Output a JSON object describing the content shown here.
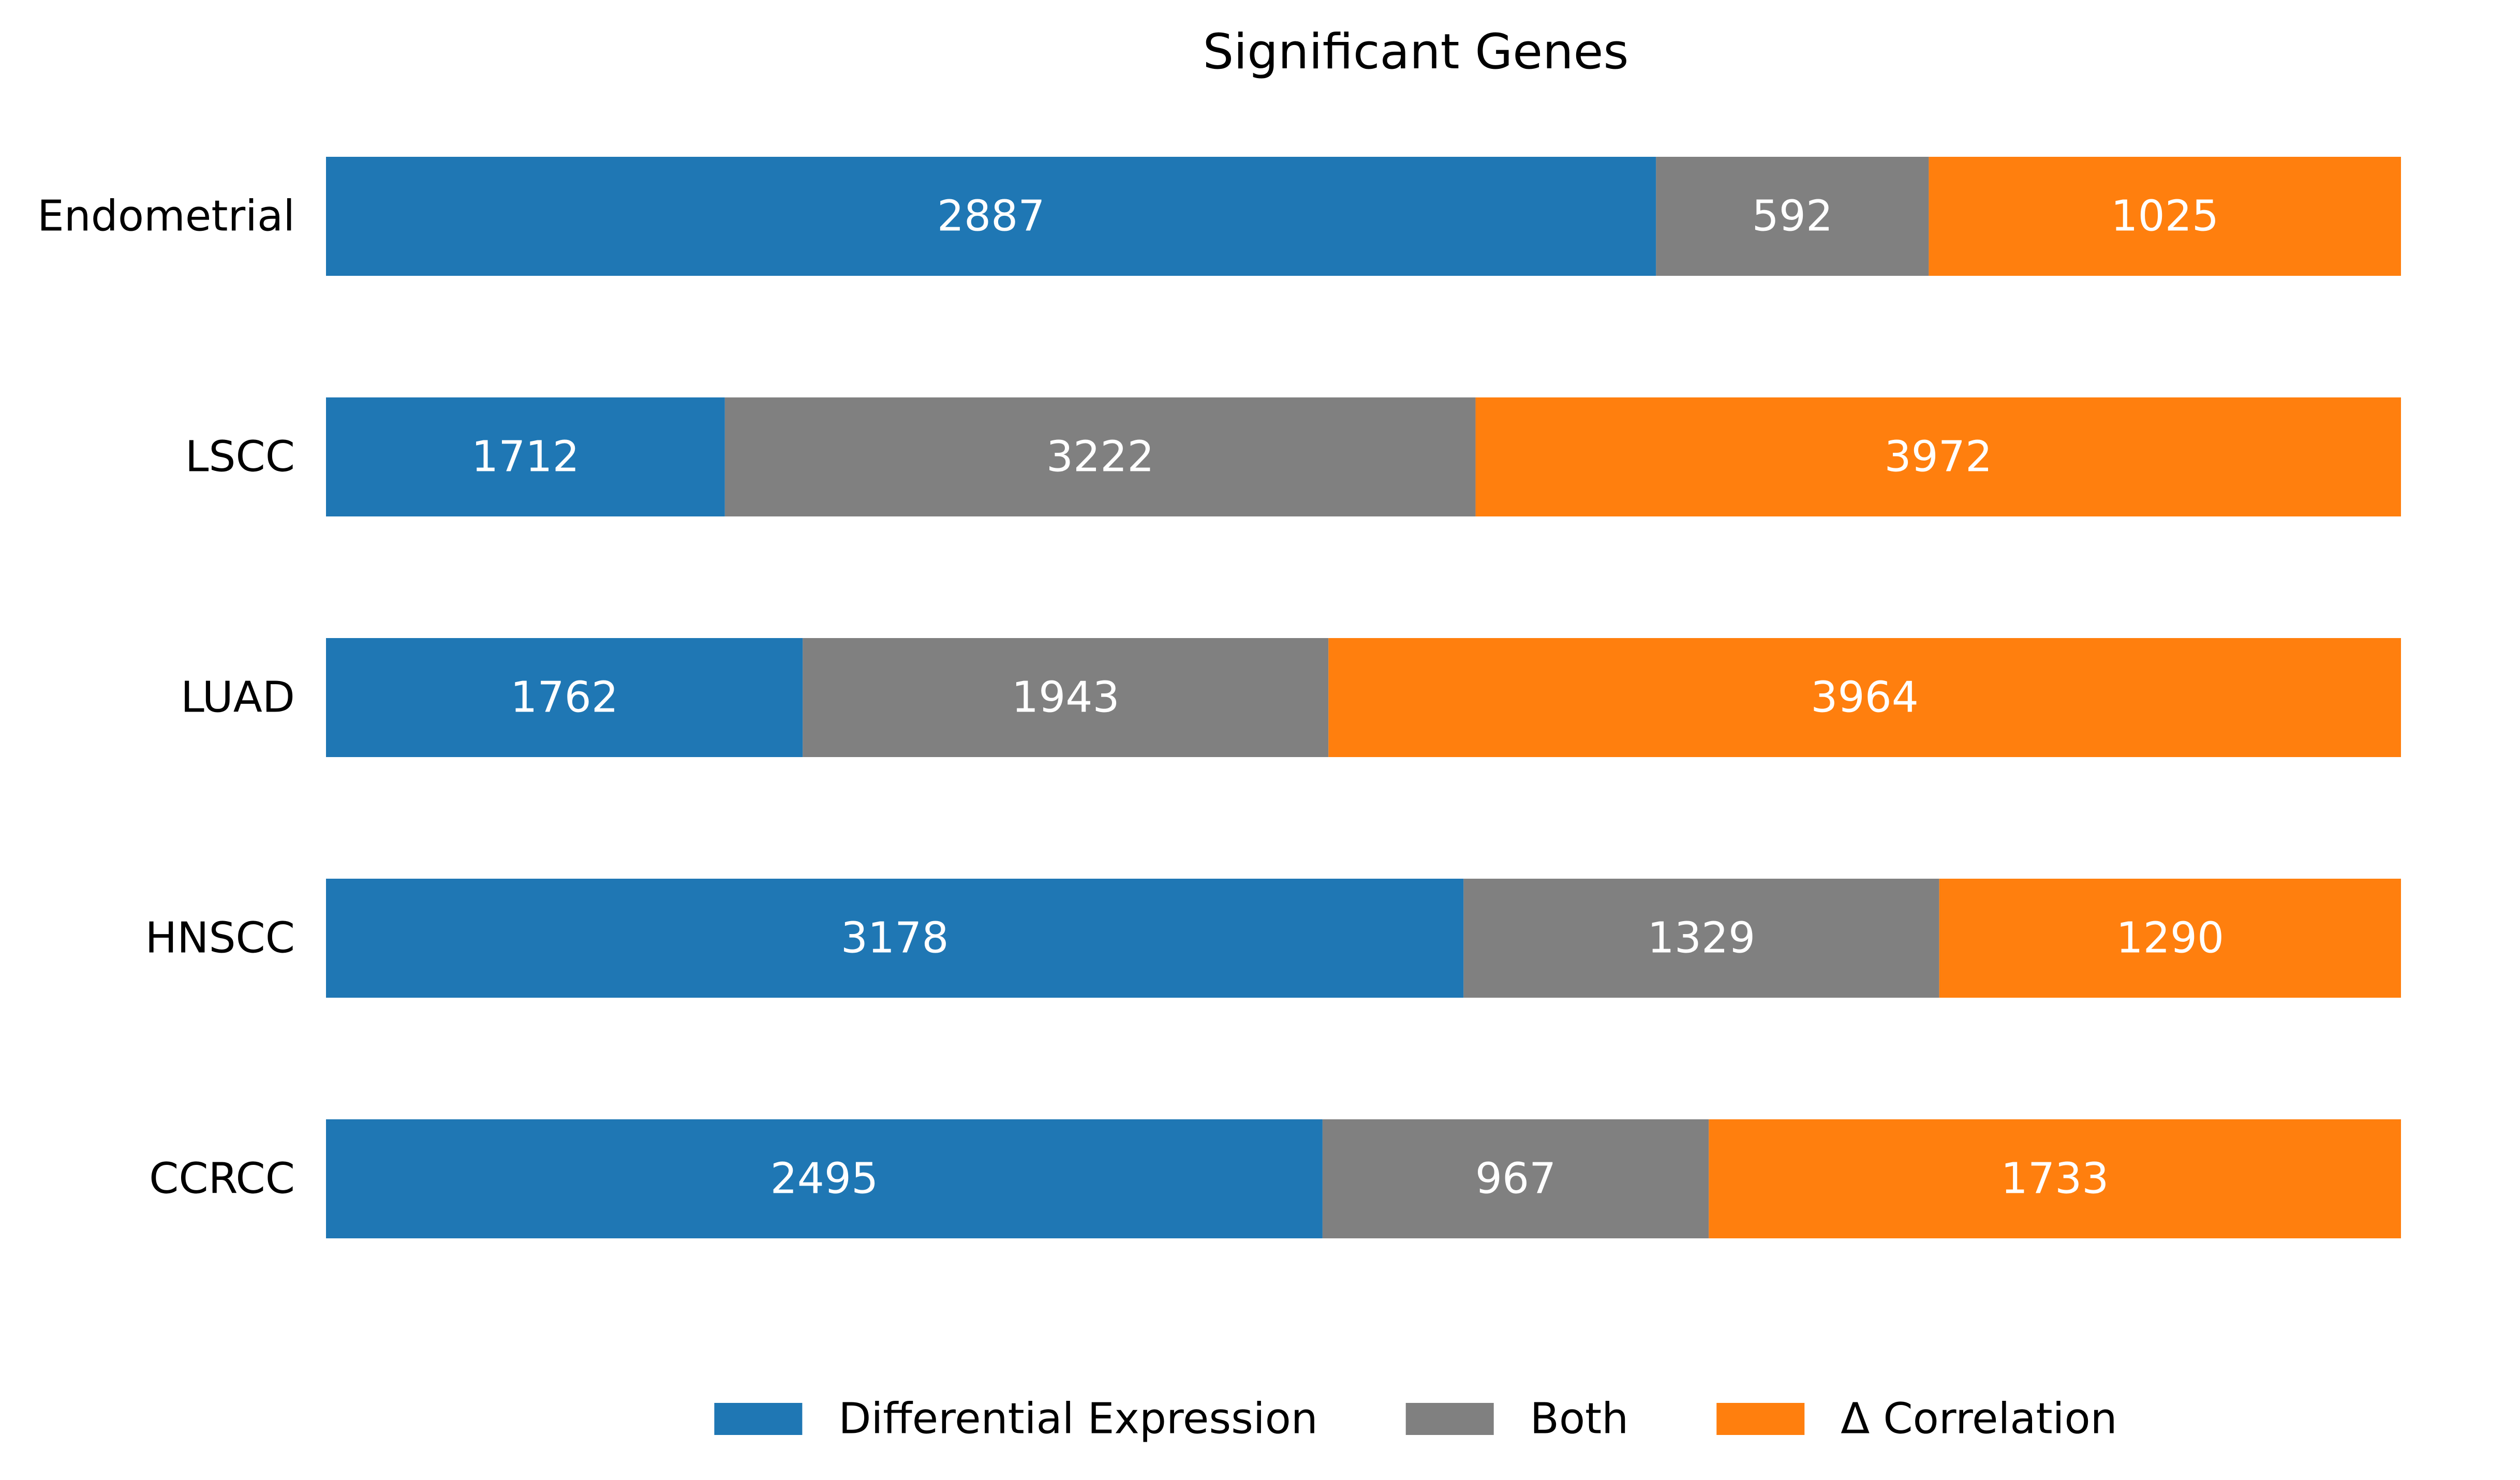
{
  "chart_data": {
    "type": "bar",
    "orientation": "horizontal",
    "stacked": true,
    "normalized": true,
    "title": "Significant Genes",
    "xlabel": "",
    "ylabel": "",
    "categories": [
      "Endometrial",
      "LSCC",
      "LUAD",
      "HNSCC",
      "CCRCC"
    ],
    "series": [
      {
        "name": "Differential Expression",
        "color": "#1f77b4",
        "values": [
          2887,
          1712,
          1762,
          3178,
          2495
        ]
      },
      {
        "name": "Both",
        "color": "#808080",
        "values": [
          592,
          3222,
          1943,
          1329,
          967
        ]
      },
      {
        "name": "Δ Correlation",
        "color": "#ff7f0e",
        "values": [
          1025,
          3972,
          3964,
          1290,
          1733
        ]
      }
    ],
    "axes_visible": false,
    "grid": false,
    "legend_position": "bottom-center",
    "data_labels": true
  }
}
